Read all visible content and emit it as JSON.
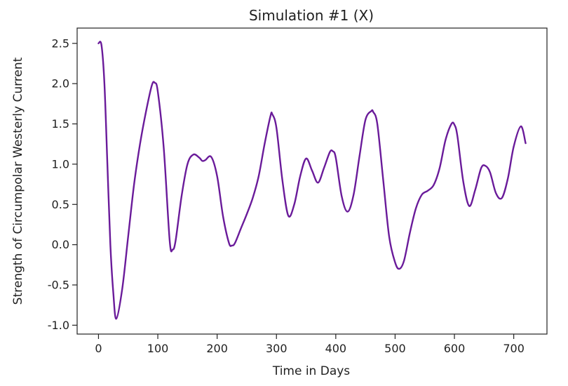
{
  "chart_data": {
    "type": "line",
    "title": "Simulation #1 (X)",
    "xlabel": "Time in Days",
    "ylabel": "Strength of Circumpolar Westerly Current",
    "xlim": [
      -36,
      756
    ],
    "ylim": [
      -1.11,
      2.69
    ],
    "xticks": [
      0,
      100,
      200,
      300,
      400,
      500,
      600,
      700
    ],
    "yticks": [
      -1.0,
      -0.5,
      0.0,
      0.5,
      1.0,
      1.5,
      2.0,
      2.5
    ],
    "grid": false,
    "line_color": "#6a1b9a",
    "series": [
      {
        "x": [
          0,
          5,
          10,
          15,
          20,
          25,
          30,
          40,
          50,
          60,
          70,
          80,
          90,
          95,
          100,
          110,
          120,
          125,
          130,
          140,
          150,
          160,
          170,
          175,
          180,
          190,
          200,
          210,
          220,
          225,
          230,
          240,
          250,
          260,
          270,
          280,
          290,
          293,
          300,
          310,
          320,
          330,
          340,
          350,
          360,
          370,
          380,
          390,
          395,
          400,
          410,
          420,
          430,
          440,
          450,
          460,
          463,
          470,
          480,
          490,
          500,
          507,
          515,
          525,
          535,
          545,
          555,
          565,
          575,
          585,
          595,
          600,
          605,
          615,
          625,
          635,
          645,
          652,
          660,
          670,
          680,
          690,
          700,
          712,
          720
        ],
        "y": [
          2.5,
          2.48,
          2.0,
          1.0,
          0.0,
          -0.6,
          -0.92,
          -0.55,
          0.1,
          0.75,
          1.25,
          1.65,
          1.98,
          2.01,
          1.9,
          1.2,
          0.05,
          -0.06,
          0.05,
          0.6,
          1.0,
          1.12,
          1.08,
          1.04,
          1.05,
          1.09,
          0.85,
          0.35,
          0.02,
          -0.01,
          0.02,
          0.2,
          0.38,
          0.58,
          0.85,
          1.25,
          1.6,
          1.62,
          1.45,
          0.8,
          0.36,
          0.5,
          0.85,
          1.07,
          0.92,
          0.77,
          0.95,
          1.15,
          1.16,
          1.08,
          0.6,
          0.41,
          0.62,
          1.1,
          1.55,
          1.66,
          1.65,
          1.5,
          0.8,
          0.1,
          -0.22,
          -0.3,
          -0.2,
          0.15,
          0.45,
          0.62,
          0.67,
          0.74,
          0.95,
          1.3,
          1.5,
          1.49,
          1.35,
          0.78,
          0.48,
          0.68,
          0.95,
          0.98,
          0.9,
          0.64,
          0.58,
          0.82,
          1.22,
          1.47,
          1.26
        ]
      }
    ]
  }
}
